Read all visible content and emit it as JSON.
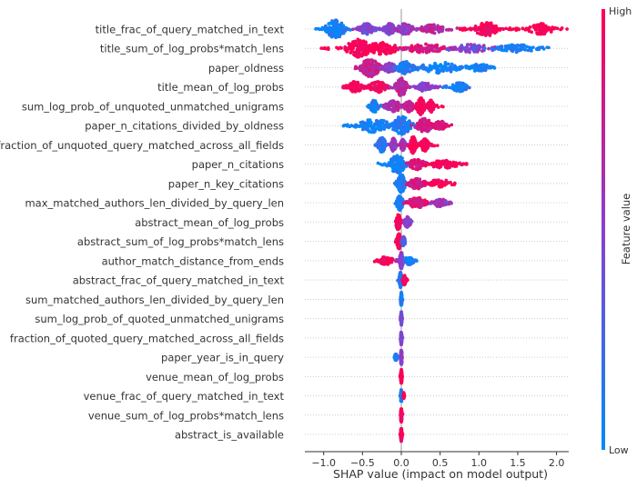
{
  "chart_data": {
    "type": "scatter",
    "subtype": "shap-beeswarm",
    "xlabel": "SHAP value (impact on model output)",
    "xlim": [
      -1.25,
      2.3
    ],
    "xticks": [
      -1.0,
      -0.5,
      0.0,
      0.5,
      1.0,
      1.5,
      2.0
    ],
    "xtick_labels": [
      "−1.0",
      "−0.5",
      "0.0",
      "0.5",
      "1.0",
      "1.5",
      "2.0"
    ],
    "colorbar": {
      "label": "Feature value",
      "high_label": "High",
      "low_label": "Low",
      "low_color": "#008bfb",
      "high_color": "#ff0052"
    },
    "grid": "dotted-row-lines",
    "features": [
      {
        "name": "title_frac_of_query_matched_in_text",
        "range": [
          -1.1,
          2.15
        ],
        "clusters": [
          [
            -0.85,
            0.12,
            1.0,
            0.05
          ],
          [
            -0.45,
            0.1,
            0.5,
            0.45
          ],
          [
            -0.15,
            0.08,
            0.5,
            0.5
          ],
          [
            0.05,
            0.1,
            0.5,
            0.55
          ],
          [
            0.4,
            0.15,
            0.35,
            0.7
          ],
          [
            1.1,
            0.15,
            0.7,
            1.0
          ],
          [
            1.8,
            0.15,
            0.5,
            1.0
          ]
        ]
      },
      {
        "name": "title_sum_of_log_probs*match_lens",
        "range": [
          -1.05,
          1.9
        ],
        "clusters": [
          [
            -0.55,
            0.15,
            1.0,
            1.0
          ],
          [
            -0.25,
            0.2,
            0.6,
            1.0
          ],
          [
            0.3,
            0.25,
            0.4,
            0.85
          ],
          [
            0.9,
            0.3,
            0.3,
            0.5
          ],
          [
            1.5,
            0.25,
            0.3,
            0.1
          ]
        ]
      },
      {
        "name": "paper_oldness",
        "range": [
          -0.65,
          1.2
        ],
        "clusters": [
          [
            -0.4,
            0.12,
            1.0,
            0.75
          ],
          [
            -0.15,
            0.08,
            0.4,
            0.5
          ],
          [
            0.05,
            0.1,
            0.6,
            0.15
          ],
          [
            0.5,
            0.3,
            0.5,
            0.05
          ],
          [
            1.0,
            0.15,
            0.25,
            0.05
          ]
        ]
      },
      {
        "name": "title_mean_of_log_probs",
        "range": [
          -0.75,
          0.95
        ],
        "clusters": [
          [
            -0.6,
            0.1,
            0.5,
            1.0
          ],
          [
            -0.3,
            0.12,
            0.5,
            0.95
          ],
          [
            0.0,
            0.07,
            1.0,
            0.7
          ],
          [
            0.3,
            0.1,
            0.4,
            0.5
          ],
          [
            0.75,
            0.1,
            0.4,
            0.1
          ]
        ]
      },
      {
        "name": "sum_log_prob_of_unquoted_unmatched_unigrams",
        "range": [
          -0.45,
          0.55
        ],
        "clusters": [
          [
            -0.35,
            0.05,
            0.6,
            0.1
          ],
          [
            -0.1,
            0.1,
            0.5,
            0.7
          ],
          [
            0.1,
            0.06,
            0.5,
            0.75
          ],
          [
            0.25,
            0.05,
            0.9,
            1.0
          ],
          [
            0.38,
            0.04,
            0.6,
            1.0
          ]
        ]
      },
      {
        "name": "paper_n_citations_divided_by_oldness",
        "range": [
          -0.75,
          0.65
        ],
        "clusters": [
          [
            -0.35,
            0.2,
            0.7,
            0.05
          ],
          [
            0.0,
            0.12,
            1.0,
            0.1
          ],
          [
            0.3,
            0.1,
            0.7,
            0.75
          ],
          [
            0.5,
            0.08,
            0.4,
            0.85
          ]
        ]
      },
      {
        "name": "fraction_of_unquoted_query_matched_across_all_fields",
        "range": [
          -0.35,
          0.5
        ],
        "clusters": [
          [
            -0.25,
            0.05,
            0.8,
            0.15
          ],
          [
            -0.1,
            0.03,
            0.7,
            0.55
          ],
          [
            0.02,
            0.03,
            0.5,
            0.6
          ],
          [
            0.15,
            0.04,
            0.9,
            1.0
          ],
          [
            0.3,
            0.05,
            0.6,
            1.0
          ]
        ]
      },
      {
        "name": "paper_n_citations",
        "range": [
          -0.3,
          0.85
        ],
        "clusters": [
          [
            -0.05,
            0.1,
            1.0,
            0.05
          ],
          [
            0.2,
            0.1,
            0.5,
            0.8
          ],
          [
            0.55,
            0.2,
            0.3,
            1.0
          ]
        ]
      },
      {
        "name": "paper_n_key_citations",
        "range": [
          -0.1,
          0.7
        ],
        "clusters": [
          [
            0.0,
            0.05,
            1.0,
            0.1
          ],
          [
            0.2,
            0.1,
            0.5,
            0.8
          ],
          [
            0.5,
            0.15,
            0.3,
            1.0
          ]
        ]
      },
      {
        "name": "max_matched_authors_len_divided_by_query_len",
        "range": [
          -0.1,
          0.65
        ],
        "clusters": [
          [
            -0.02,
            0.04,
            0.8,
            0.05
          ],
          [
            0.2,
            0.12,
            0.5,
            0.85
          ],
          [
            0.5,
            0.1,
            0.3,
            0.6
          ]
        ]
      },
      {
        "name": "abstract_mean_of_log_probs",
        "range": [
          -0.1,
          0.15
        ],
        "clusters": [
          [
            -0.04,
            0.03,
            0.8,
            1.0
          ],
          [
            0.08,
            0.04,
            0.5,
            0.55
          ]
        ]
      },
      {
        "name": "abstract_sum_of_log_probs*match_lens",
        "range": [
          -0.1,
          0.05
        ],
        "clusters": [
          [
            -0.03,
            0.03,
            0.8,
            1.0
          ],
          [
            0.03,
            0.02,
            0.4,
            0.3
          ]
        ]
      },
      {
        "name": "author_match_distance_from_ends",
        "range": [
          -0.4,
          0.2
        ],
        "clusters": [
          [
            -0.2,
            0.1,
            0.3,
            1.0
          ],
          [
            0.0,
            0.02,
            0.9,
            0.5
          ],
          [
            0.1,
            0.06,
            0.3,
            0.1
          ]
        ]
      },
      {
        "name": "abstract_frac_of_query_matched_in_text",
        "range": [
          -0.05,
          0.08
        ],
        "clusters": [
          [
            -0.01,
            0.015,
            0.8,
            0.15
          ],
          [
            0.04,
            0.02,
            0.4,
            1.0
          ]
        ]
      },
      {
        "name": "sum_matched_authors_len_divided_by_query_len",
        "range": [
          -0.02,
          0.02
        ],
        "clusters": [
          [
            0.0,
            0.008,
            0.7,
            0.1
          ]
        ]
      },
      {
        "name": "sum_log_prob_of_quoted_unmatched_unigrams",
        "range": [
          -0.02,
          0.02
        ],
        "clusters": [
          [
            0.0,
            0.008,
            0.7,
            0.5
          ]
        ]
      },
      {
        "name": "fraction_of_quoted_query_matched_across_all_fields",
        "range": [
          -0.02,
          0.02
        ],
        "clusters": [
          [
            0.0,
            0.008,
            0.7,
            0.5
          ]
        ]
      },
      {
        "name": "paper_year_is_in_query",
        "range": [
          -0.1,
          0.02
        ],
        "clusters": [
          [
            0.0,
            0.008,
            0.8,
            0.5
          ],
          [
            -0.07,
            0.02,
            0.2,
            0.1
          ]
        ]
      },
      {
        "name": "venue_mean_of_log_probs",
        "range": [
          -0.02,
          0.02
        ],
        "clusters": [
          [
            0.0,
            0.008,
            0.7,
            1.0
          ]
        ]
      },
      {
        "name": "venue_frac_of_query_matched_in_text",
        "range": [
          -0.02,
          0.04
        ],
        "clusters": [
          [
            0.0,
            0.008,
            0.7,
            0.1
          ],
          [
            0.03,
            0.005,
            0.2,
            1.0
          ]
        ]
      },
      {
        "name": "venue_sum_of_log_probs*match_lens",
        "range": [
          -0.02,
          0.02
        ],
        "clusters": [
          [
            0.0,
            0.008,
            0.7,
            1.0
          ]
        ]
      },
      {
        "name": "abstract_is_available",
        "range": [
          -0.02,
          0.02
        ],
        "clusters": [
          [
            0.0,
            0.008,
            0.7,
            1.0
          ]
        ]
      }
    ]
  }
}
